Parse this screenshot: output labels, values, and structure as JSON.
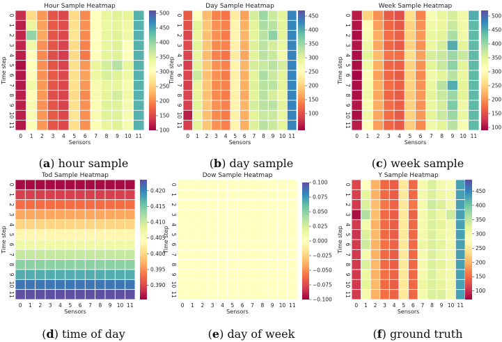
{
  "chart_data": [
    {
      "type": "heatmap",
      "title": "Hour Sample Heatmap",
      "caption_letter": "a",
      "caption_text": "hour sample",
      "xlabel": "Sensors",
      "ylabel": "Time step",
      "x_ticks": [
        "0",
        "1",
        "2",
        "3",
        "4",
        "5",
        "6",
        "7",
        "8",
        "9",
        "10",
        "11"
      ],
      "y_ticks": [
        "0",
        "1",
        "2",
        "3",
        "4",
        "5",
        "6",
        "7",
        "8",
        "9",
        "10",
        "11"
      ],
      "vmin": 100,
      "vmax": 510,
      "colorbar_ticks": [
        "100",
        "150",
        "200",
        "250",
        "300",
        "350",
        "400",
        "450",
        "500"
      ],
      "colorbar_tick_values": [
        100,
        150,
        200,
        250,
        300,
        350,
        400,
        450,
        500
      ],
      "values": [
        [
          130,
          260,
          210,
          160,
          150,
          260,
          200,
          310,
          340,
          350,
          345,
          440
        ],
        [
          120,
          340,
          215,
          165,
          155,
          265,
          205,
          310,
          335,
          345,
          330,
          440
        ],
        [
          125,
          400,
          220,
          160,
          150,
          270,
          200,
          305,
          340,
          350,
          330,
          440
        ],
        [
          125,
          330,
          205,
          160,
          145,
          260,
          195,
          310,
          340,
          350,
          310,
          440
        ],
        [
          120,
          300,
          200,
          155,
          140,
          260,
          190,
          310,
          345,
          350,
          310,
          440
        ],
        [
          110,
          310,
          205,
          160,
          145,
          265,
          210,
          340,
          360,
          380,
          340,
          440
        ],
        [
          115,
          300,
          205,
          165,
          150,
          265,
          215,
          335,
          355,
          350,
          330,
          440
        ],
        [
          115,
          330,
          210,
          160,
          150,
          265,
          210,
          320,
          340,
          340,
          320,
          440
        ],
        [
          120,
          300,
          210,
          155,
          145,
          260,
          200,
          320,
          345,
          360,
          330,
          440
        ],
        [
          120,
          320,
          205,
          160,
          145,
          265,
          205,
          315,
          350,
          350,
          320,
          440
        ],
        [
          120,
          320,
          210,
          165,
          150,
          270,
          205,
          320,
          350,
          350,
          320,
          440
        ],
        [
          115,
          310,
          210,
          160,
          150,
          265,
          205,
          315,
          340,
          350,
          320,
          440
        ]
      ]
    },
    {
      "type": "heatmap",
      "title": "Day Sample Heatmap",
      "caption_letter": "b",
      "caption_text": "day sample",
      "xlabel": "Sensors",
      "ylabel": "Time step",
      "x_ticks": [
        "0",
        "1",
        "2",
        "3",
        "4",
        "5",
        "6",
        "7",
        "8",
        "9",
        "10",
        "11"
      ],
      "y_ticks": [
        "0",
        "1",
        "2",
        "3",
        "4",
        "5",
        "6",
        "7",
        "8",
        "9",
        "10",
        "11"
      ],
      "vmin": 40,
      "vmax": 470,
      "colorbar_ticks": [
        "100",
        "150",
        "200",
        "250",
        "300",
        "350",
        "400",
        "450"
      ],
      "colorbar_tick_values": [
        100,
        150,
        200,
        250,
        300,
        350,
        400,
        450
      ],
      "values": [
        [
          110,
          260,
          180,
          140,
          130,
          230,
          160,
          310,
          350,
          320,
          300,
          430
        ],
        [
          100,
          300,
          190,
          150,
          140,
          240,
          170,
          300,
          340,
          330,
          300,
          430
        ],
        [
          90,
          290,
          185,
          150,
          135,
          240,
          175,
          300,
          330,
          360,
          300,
          430
        ],
        [
          95,
          300,
          190,
          145,
          140,
          235,
          170,
          305,
          330,
          310,
          290,
          430
        ],
        [
          90,
          290,
          180,
          140,
          130,
          230,
          165,
          300,
          330,
          320,
          280,
          430
        ],
        [
          85,
          300,
          190,
          150,
          140,
          240,
          175,
          310,
          320,
          330,
          310,
          430
        ],
        [
          90,
          320,
          185,
          150,
          135,
          235,
          170,
          300,
          340,
          320,
          300,
          430
        ],
        [
          85,
          290,
          190,
          145,
          140,
          240,
          170,
          305,
          330,
          330,
          300,
          430
        ],
        [
          90,
          295,
          185,
          145,
          135,
          235,
          165,
          300,
          330,
          310,
          290,
          430
        ],
        [
          85,
          300,
          190,
          150,
          140,
          240,
          175,
          310,
          330,
          330,
          300,
          430
        ],
        [
          60,
          290,
          185,
          145,
          135,
          235,
          170,
          300,
          320,
          320,
          290,
          430
        ],
        [
          85,
          300,
          190,
          150,
          140,
          240,
          170,
          305,
          330,
          320,
          300,
          430
        ]
      ]
    },
    {
      "type": "heatmap",
      "title": "Week Sample Heatmap",
      "caption_letter": "c",
      "caption_text": "week sample",
      "xlabel": "Sensors",
      "ylabel": "Time step",
      "x_ticks": [
        "0",
        "1",
        "2",
        "3",
        "4",
        "5",
        "6",
        "7",
        "8",
        "9",
        "10",
        "11"
      ],
      "y_ticks": [
        "0",
        "1",
        "2",
        "3",
        "4",
        "5",
        "6",
        "7",
        "8",
        "9",
        "10",
        "11"
      ],
      "vmin": 90,
      "vmax": 520,
      "colorbar_ticks": [
        "100",
        "150",
        "200",
        "250",
        "300",
        "350",
        "400",
        "450",
        "500"
      ],
      "colorbar_tick_values": [
        100,
        150,
        200,
        250,
        300,
        350,
        400,
        450,
        500
      ],
      "values": [
        [
          110,
          250,
          200,
          160,
          150,
          260,
          190,
          320,
          340,
          360,
          330,
          450
        ],
        [
          105,
          300,
          210,
          170,
          160,
          250,
          200,
          330,
          340,
          370,
          330,
          440
        ],
        [
          100,
          320,
          220,
          175,
          165,
          250,
          205,
          340,
          350,
          390,
          330,
          440
        ],
        [
          105,
          330,
          215,
          170,
          160,
          250,
          200,
          340,
          360,
          450,
          350,
          440
        ],
        [
          100,
          350,
          230,
          180,
          175,
          260,
          210,
          360,
          370,
          400,
          370,
          440
        ],
        [
          100,
          330,
          220,
          170,
          165,
          250,
          200,
          350,
          370,
          410,
          350,
          440
        ],
        [
          95,
          310,
          210,
          170,
          160,
          250,
          195,
          330,
          350,
          380,
          340,
          440
        ],
        [
          100,
          320,
          220,
          175,
          165,
          250,
          200,
          340,
          380,
          450,
          350,
          440
        ],
        [
          100,
          330,
          215,
          170,
          160,
          245,
          205,
          350,
          370,
          400,
          350,
          440
        ],
        [
          105,
          320,
          220,
          175,
          165,
          250,
          200,
          340,
          360,
          420,
          330,
          440
        ],
        [
          100,
          330,
          215,
          175,
          160,
          250,
          205,
          350,
          370,
          400,
          340,
          440
        ],
        [
          110,
          310,
          210,
          170,
          160,
          245,
          195,
          330,
          350,
          380,
          320,
          440
        ]
      ]
    },
    {
      "type": "heatmap",
      "title": "Tod Sample Heatmap",
      "caption_letter": "d",
      "caption_text": "time of day",
      "xlabel": "Sensors",
      "ylabel": "Time step",
      "x_ticks": [
        "0",
        "1",
        "2",
        "3",
        "4",
        "5",
        "6",
        "7",
        "8",
        "9",
        "10",
        "11"
      ],
      "y_ticks": [
        "0",
        "1",
        "2",
        "3",
        "4",
        "5",
        "6",
        "7",
        "8",
        "9",
        "10",
        "11"
      ],
      "vmin": 0.3855,
      "vmax": 0.4235,
      "colorbar_ticks": [
        "0.390",
        "0.395",
        "0.400",
        "0.405",
        "0.410",
        "0.415",
        "0.420"
      ],
      "colorbar_tick_values": [
        0.39,
        0.395,
        0.4,
        0.405,
        0.41,
        0.415,
        0.42
      ],
      "row_values": [
        0.3861,
        0.3895,
        0.393,
        0.3965,
        0.3999,
        0.4034,
        0.4069,
        0.4104,
        0.4138,
        0.4173,
        0.4208,
        0.4242
      ]
    },
    {
      "type": "heatmap",
      "title": "Dow Sample Heatmap",
      "caption_letter": "e",
      "caption_text": "day of week",
      "xlabel": "Sensors",
      "ylabel": "Time step",
      "x_ticks": [
        "0",
        "1",
        "2",
        "3",
        "4",
        "5",
        "6",
        "7",
        "8",
        "9",
        "10",
        "11"
      ],
      "y_ticks": [
        "0",
        "1",
        "2",
        "3",
        "4",
        "5",
        "6",
        "7",
        "8",
        "9",
        "10",
        "11"
      ],
      "vmin": -0.1,
      "vmax": 0.1,
      "colorbar_ticks": [
        "−0.100",
        "−0.075",
        "−0.050",
        "−0.025",
        "0.000",
        "0.025",
        "0.050",
        "0.075",
        "0.100"
      ],
      "colorbar_tick_values": [
        -0.1,
        -0.075,
        -0.05,
        -0.025,
        0,
        0.025,
        0.05,
        0.075,
        0.1
      ],
      "constant_value": 0
    },
    {
      "type": "heatmap",
      "title": "Y Sample Heatmap",
      "caption_letter": "f",
      "caption_text": "ground truth",
      "xlabel": "Sensors",
      "ylabel": "Time step",
      "x_ticks": [
        "0",
        "1",
        "2",
        "3",
        "4",
        "5",
        "6",
        "7",
        "8",
        "9",
        "10",
        "11"
      ],
      "y_ticks": [
        "0",
        "1",
        "2",
        "3",
        "4",
        "5",
        "6",
        "7",
        "8",
        "9",
        "10",
        "11"
      ],
      "vmin": 70,
      "vmax": 490,
      "colorbar_ticks": [
        "100",
        "150",
        "200",
        "250",
        "300",
        "350",
        "400",
        "450"
      ],
      "colorbar_tick_values": [
        100,
        150,
        200,
        250,
        300,
        350,
        400,
        450
      ],
      "values": [
        [
          120,
          280,
          200,
          150,
          140,
          250,
          150,
          300,
          330,
          300,
          290,
          430
        ],
        [
          115,
          320,
          200,
          150,
          140,
          250,
          150,
          300,
          330,
          310,
          300,
          430
        ],
        [
          110,
          330,
          210,
          160,
          145,
          250,
          160,
          300,
          340,
          330,
          300,
          430
        ],
        [
          80,
          360,
          210,
          150,
          140,
          250,
          145,
          300,
          330,
          310,
          340,
          430
        ],
        [
          110,
          300,
          200,
          150,
          140,
          250,
          150,
          300,
          330,
          320,
          300,
          430
        ],
        [
          105,
          330,
          205,
          150,
          140,
          250,
          150,
          300,
          330,
          310,
          300,
          430
        ],
        [
          110,
          340,
          200,
          155,
          145,
          250,
          150,
          310,
          330,
          320,
          300,
          430
        ],
        [
          110,
          300,
          200,
          150,
          140,
          250,
          150,
          300,
          330,
          310,
          300,
          430
        ],
        [
          110,
          330,
          205,
          150,
          140,
          250,
          150,
          300,
          330,
          320,
          300,
          430
        ],
        [
          110,
          310,
          200,
          155,
          145,
          250,
          150,
          300,
          330,
          310,
          300,
          430
        ],
        [
          110,
          320,
          205,
          150,
          140,
          250,
          150,
          310,
          330,
          320,
          300,
          430
        ],
        [
          110,
          300,
          200,
          155,
          145,
          250,
          150,
          300,
          330,
          330,
          300,
          430
        ]
      ]
    }
  ]
}
